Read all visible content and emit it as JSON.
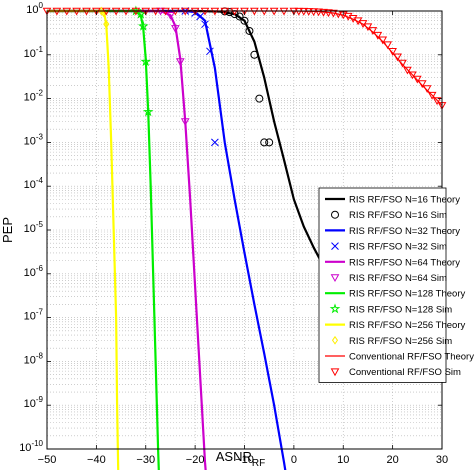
{
  "chart_data": {
    "type": "line",
    "xlabel": "ASNR",
    "xlabel_sub": "RF",
    "ylabel": "PEP",
    "xlim": [
      -50,
      30
    ],
    "ylim_exp": [
      -10,
      0
    ],
    "yscale": "log",
    "grid": true,
    "legend_position": "lower-right",
    "x_ticks": [
      -50,
      -40,
      -30,
      -20,
      -10,
      0,
      10,
      20,
      30
    ],
    "x_tick_labels": [
      "−50",
      "−40",
      "−30",
      "−20",
      "−10",
      "0",
      "10",
      "20",
      "30"
    ],
    "y_tick_exponents": [
      0,
      -1,
      -2,
      -3,
      -4,
      -5,
      -6,
      -7,
      -8,
      -9,
      -10
    ],
    "y_tick_labels": [
      "10^0",
      "10^-1",
      "10^-2",
      "10^-3",
      "10^-4",
      "10^-5",
      "10^-6",
      "10^-7",
      "10^-8",
      "10^-9",
      "10^-10"
    ],
    "series": [
      {
        "name": "RIS RF/FSO N=16 Theory",
        "kind": "line",
        "color": "#000000",
        "x": [
          -50,
          -20,
          -15,
          -12,
          -10,
          -8,
          -6,
          -4,
          -2,
          0,
          2,
          4,
          6,
          8,
          10,
          12,
          13
        ],
        "y": [
          1,
          1,
          0.97,
          0.85,
          0.6,
          0.2,
          0.03,
          0.003,
          0.0004,
          5e-05,
          1.2e-05,
          4e-06,
          1.5e-06,
          6e-07,
          3e-07,
          1.7e-07,
          1.3e-07
        ]
      },
      {
        "name": "RIS RF/FSO N=16 Sim",
        "kind": "marker",
        "marker": "circle",
        "color": "#000000",
        "x": [
          -14,
          -13,
          -12,
          -11,
          -10,
          -9,
          -8,
          -7,
          -6,
          -5
        ],
        "y": [
          0.98,
          0.94,
          0.85,
          0.75,
          0.6,
          0.35,
          0.1,
          0.01,
          0.001,
          0.001
        ]
      },
      {
        "name": "RIS RF/FSO N=32 Theory",
        "kind": "line",
        "color": "#0000ff",
        "x": [
          -50,
          -22,
          -20,
          -18,
          -16,
          -14,
          -12,
          -10,
          -8,
          -6,
          -4,
          -2,
          -1
        ],
        "y": [
          1,
          1,
          0.95,
          0.6,
          0.05,
          0.001,
          5e-05,
          3e-06,
          2e-07,
          1.5e-08,
          1e-09,
          5e-11,
          1e-11
        ]
      },
      {
        "name": "RIS RF/FSO N=32 Sim",
        "kind": "marker",
        "marker": "x",
        "color": "#0000ff",
        "x": [
          -22,
          -20,
          -19,
          -18,
          -17,
          -16
        ],
        "y": [
          1,
          0.9,
          0.75,
          0.5,
          0.12,
          0.001
        ]
      },
      {
        "name": "RIS RF/FSO N=64 Theory",
        "kind": "line",
        "color": "#cc00cc",
        "x": [
          -50,
          -27,
          -25,
          -24,
          -23,
          -22,
          -21,
          -20,
          -19,
          -18,
          -17.5
        ],
        "y": [
          1,
          1,
          0.8,
          0.45,
          0.08,
          0.003,
          5e-05,
          5e-07,
          5e-09,
          5e-11,
          1e-11
        ]
      },
      {
        "name": "RIS RF/FSO N=64 Sim",
        "kind": "marker",
        "marker": "triangle-down",
        "color": "#cc00cc",
        "x": [
          -27,
          -25,
          -24,
          -23,
          -22
        ],
        "y": [
          1,
          0.8,
          0.4,
          0.07,
          0.003
        ]
      },
      {
        "name": "RIS RF/FSO N=128 Theory",
        "kind": "line",
        "color": "#00ee00",
        "x": [
          -50,
          -32,
          -31,
          -30.5,
          -30,
          -29.5,
          -29,
          -28.5,
          -28,
          -27.5,
          -27.2
        ],
        "y": [
          1,
          1,
          0.8,
          0.4,
          0.08,
          0.005,
          0.0001,
          1e-06,
          1e-08,
          1e-10,
          1e-11
        ]
      },
      {
        "name": "RIS RF/FSO N=128 Sim",
        "kind": "marker",
        "marker": "star",
        "color": "#00ee00",
        "x": [
          -32,
          -31,
          -30.5,
          -30,
          -29.5
        ],
        "y": [
          1,
          0.85,
          0.45,
          0.07,
          0.005
        ]
      },
      {
        "name": "RIS RF/FSO N=256 Theory",
        "kind": "line",
        "color": "#ffff00",
        "x": [
          -50,
          -38.5,
          -38,
          -37.5,
          -37,
          -36.5,
          -36,
          -35.8,
          -35.5
        ],
        "y": [
          1,
          1,
          0.5,
          0.05,
          0.001,
          1e-05,
          1e-07,
          1e-09,
          1e-11
        ]
      },
      {
        "name": "RIS RF/FSO N=256 Sim",
        "kind": "marker",
        "marker": "diamond",
        "color": "#ffee00",
        "x": [
          -39,
          -38.5,
          -38
        ],
        "y": [
          1,
          0.9,
          0.5
        ]
      },
      {
        "name": "Conventional RF/FSO Theory",
        "kind": "line",
        "color": "#ff0000",
        "x": [
          -50,
          -10,
          0,
          5,
          8,
          10,
          12,
          14,
          16,
          18,
          20,
          22,
          24,
          26,
          28,
          30
        ],
        "y": [
          1,
          1,
          1,
          0.97,
          0.9,
          0.8,
          0.65,
          0.5,
          0.33,
          0.2,
          0.11,
          0.06,
          0.035,
          0.02,
          0.012,
          0.007
        ]
      },
      {
        "name": "Conventional RF/FSO Sim",
        "kind": "marker",
        "marker": "triangle-down",
        "color": "#ff0000",
        "x": [
          -50,
          -48,
          -46,
          -44,
          -42,
          -40,
          -38,
          -36,
          -34,
          -32,
          -30,
          -28,
          -26,
          -24,
          -22,
          -20,
          -18,
          -16,
          -14,
          -12,
          -10,
          -8,
          -6,
          -4,
          -2,
          0,
          1,
          2,
          3,
          4,
          5,
          6,
          7,
          8,
          9,
          10,
          11,
          12,
          13,
          14,
          15,
          16,
          17,
          18,
          19,
          20,
          21,
          22,
          23,
          24,
          25,
          26,
          27,
          28,
          29,
          30
        ],
        "y": [
          1,
          1,
          1,
          1,
          1,
          1,
          1,
          1,
          1,
          1,
          1,
          1,
          1,
          1,
          1,
          1,
          1,
          1,
          1,
          1,
          1,
          1,
          1,
          1,
          1,
          1,
          0.99,
          0.99,
          0.98,
          0.97,
          0.96,
          0.94,
          0.92,
          0.9,
          0.86,
          0.82,
          0.76,
          0.68,
          0.6,
          0.52,
          0.44,
          0.36,
          0.28,
          0.22,
          0.17,
          0.12,
          0.09,
          0.065,
          0.045,
          0.035,
          0.028,
          0.022,
          0.017,
          0.012,
          0.009,
          0.007
        ]
      }
    ]
  }
}
